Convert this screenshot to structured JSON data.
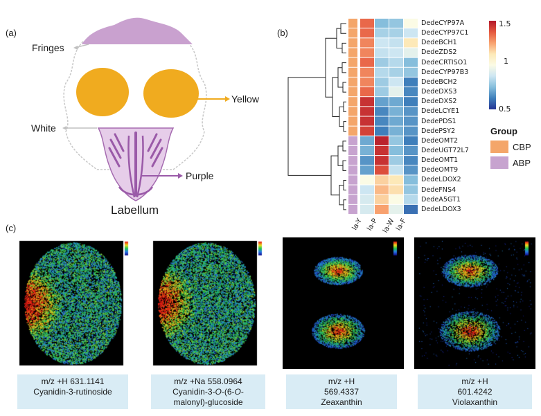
{
  "panel_labels": {
    "a": "(a)",
    "b": "(b)",
    "c": "(c)"
  },
  "flower": {
    "fringes": "Fringes",
    "yellow": "Yellow",
    "white": "White",
    "purple": "Purple",
    "labellum": "Labellum"
  },
  "heatmap": {
    "genes": [
      "DedeCYP97A",
      "DedeCYP97C1",
      "DedeBCH1",
      "DedeZDS2",
      "DedeCRTISO1",
      "DedeCYP97B3",
      "DedeBCH2",
      "DedeDXS3",
      "DedeDXS2",
      "DedeLCYE1",
      "DedePDS1",
      "DedePSY2",
      "DedeOMT2",
      "DedeUGT72L7",
      "DedeOMT1",
      "DedeOMT9",
      "DedeLDOX2",
      "DedeFNS4",
      "DedeA5GT1",
      "DedeLDOX3"
    ],
    "groups": [
      "CBP",
      "CBP",
      "CBP",
      "CBP",
      "CBP",
      "CBP",
      "CBP",
      "CBP",
      "CBP",
      "CBP",
      "CBP",
      "CBP",
      "ABP",
      "ABP",
      "ABP",
      "ABP",
      "ABP",
      "ABP",
      "ABP",
      "ABP"
    ],
    "columns": [
      "la-Y",
      "la-P",
      "la-W",
      "la-F"
    ],
    "values": [
      [
        1.35,
        0.75,
        0.78,
        1.0
      ],
      [
        1.35,
        0.82,
        0.82,
        0.9
      ],
      [
        1.3,
        0.9,
        0.88,
        1.1
      ],
      [
        1.3,
        0.88,
        0.9,
        0.95
      ],
      [
        1.35,
        0.8,
        0.85,
        0.75
      ],
      [
        1.3,
        0.85,
        0.82,
        0.78
      ],
      [
        1.3,
        0.8,
        0.9,
        0.6
      ],
      [
        1.35,
        0.8,
        0.95,
        0.62
      ],
      [
        1.45,
        0.68,
        0.7,
        0.6
      ],
      [
        1.45,
        0.62,
        0.72,
        0.65
      ],
      [
        1.45,
        0.62,
        0.7,
        0.65
      ],
      [
        1.42,
        0.6,
        0.72,
        0.65
      ],
      [
        0.7,
        1.48,
        0.78,
        0.6
      ],
      [
        0.72,
        1.45,
        0.75,
        0.65
      ],
      [
        0.65,
        1.45,
        0.8,
        0.62
      ],
      [
        0.68,
        1.4,
        0.88,
        0.65
      ],
      [
        1.0,
        1.15,
        1.1,
        0.75
      ],
      [
        0.9,
        1.2,
        1.12,
        0.78
      ],
      [
        0.92,
        1.15,
        1.0,
        0.85
      ],
      [
        0.92,
        1.25,
        0.95,
        0.58
      ]
    ],
    "colorbar_ticks": [
      "1.5",
      "1",
      "0.5"
    ],
    "legend_title": "Group",
    "legend_items": [
      {
        "label": "CBP",
        "color": "#f4a66a"
      },
      {
        "label": "ABP",
        "color": "#c7a3cf"
      }
    ]
  },
  "captions": [
    {
      "line1": "m/z +H 631.1141",
      "line2": "Cyanidin-3-rutinoside"
    },
    {
      "line1": "m/z +Na 558.0964",
      "line2_parts": [
        "Cyanidin-3-",
        "O",
        "-(6-",
        "O",
        "-"
      ],
      "line3": "malonyl)-glucoside"
    },
    {
      "line1": "m/z +H",
      "line2": "569.4337",
      "line3": "Zeaxanthin"
    },
    {
      "line1": "m/z +H",
      "line2": "601.4242",
      "line3": "Violaxanthin"
    }
  ]
}
